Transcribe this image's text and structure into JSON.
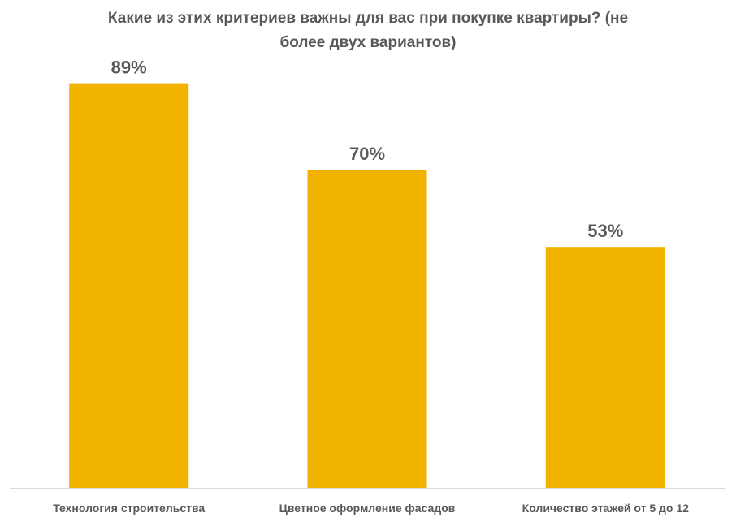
{
  "chart_data": {
    "type": "bar",
    "title": "Какие из этих критериев важны для вас при покупке квартиры? (не более двух вариантов)",
    "categories": [
      "Технология строительства",
      "Цветное оформление фасадов",
      "Количество этажей от 5 до 12"
    ],
    "values": [
      89,
      70,
      53
    ],
    "data_labels": [
      "89%",
      "70%",
      "53%"
    ],
    "ylim": [
      0,
      100
    ],
    "grid": false,
    "legend": "none",
    "xlabel": "",
    "ylabel": ""
  },
  "colors": {
    "bar": "#F2B200",
    "text": "#595959",
    "axis": "#D9D9D9"
  }
}
